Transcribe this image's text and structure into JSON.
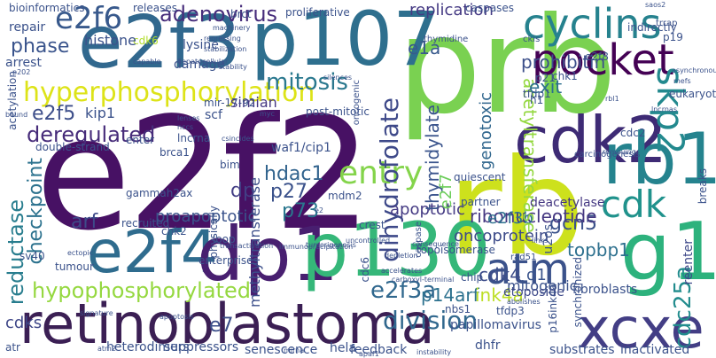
{
  "words": [
    "prb",
    "e2f2",
    "rb",
    "retinoblastoma",
    "p107",
    "e2f3",
    "cdk2",
    "e2f4",
    "dp1",
    "p130",
    "rb1",
    "g1",
    "xcxe",
    "cyclins",
    "pocket",
    "e2f6",
    "hyperphosphorylation",
    "mitosis",
    "skp2",
    "adenovirus",
    "cdk",
    "atm",
    "entry",
    "dihydrofolate",
    "hypophosphorylated",
    "e2f3a",
    "cdc25a",
    "division",
    "p14arf",
    "deregulated",
    "phase",
    "e2f5",
    "checkpoint",
    "reductase",
    "hdac1",
    "p27",
    "p73",
    "dp",
    "arf",
    "ink4a",
    "gcn5",
    "topbp1",
    "ribonucleotide",
    "oncoprotein",
    "e2f3b",
    "cdk4",
    "apoptotic",
    "thymidylate",
    "genotoxic",
    "acetyltransferase",
    "prohibitin",
    "exit",
    "e1a",
    "d1",
    "e7",
    "cdks",
    "proapoptotic",
    "simian",
    "methyltransferase",
    "replication",
    "kip1",
    "deacetylase",
    "fibroblasts",
    "mitogenic",
    "reenter",
    "u2os",
    "etoposide",
    "e2f7",
    "dhfr",
    "substrates",
    "inactivated",
    "heterodimers",
    "suppressors",
    "senescence",
    "feedback",
    "papillomavirus",
    "caspases",
    "bioinformatics",
    "releases",
    "cdk6",
    "proliferative",
    "histone",
    "arrest",
    "repair",
    "lysine",
    "brct",
    "damage",
    "scf",
    "enter",
    "lncrna",
    "brca1",
    "gammah2ax",
    "chk2",
    "bim",
    "sv40",
    "waf1/cip1",
    "physically",
    "loop",
    "mdm2",
    "crest",
    "partner",
    "quiescent",
    "topoisomerase",
    "tfdp3",
    "nbs1",
    "hela",
    "atr",
    "tumour",
    "chip",
    "cdc6",
    "synchronized",
    "p16ink4a",
    "acetylation",
    "post-mitotic",
    "mir-17-92",
    "transition",
    "enterprises",
    "rad51",
    "e2f8",
    "chk1",
    "tfdp1",
    "p21",
    "h1",
    "ckis",
    "thymidine",
    "indirectly",
    "saos2",
    "carcinogenesis",
    "cdc2",
    "breaks",
    "eukaryotes",
    "p19",
    "trrap",
    "caspase",
    "oncogenic",
    "postmitotic",
    "atm2",
    "mirna",
    "apaf1",
    "instability",
    "links",
    "abolishes",
    "double-strand",
    "recruited",
    "cdk3",
    "e2",
    "apoptosis",
    "transactivation",
    "immunoprecipitation",
    "tumorigenesis",
    "depletion",
    "accelerates",
    "ectopic",
    "uncontrolled",
    "consequence",
    "signature",
    "carboxyl-terminal",
    "nccs",
    "csincides",
    "myc",
    "bound",
    "p202",
    "hepatocellular",
    "stabilization",
    "machinery",
    "silences",
    "stability",
    "capable",
    "lenses",
    "rbl1",
    "asynchronously",
    "lncrnas",
    "repressing",
    "removing",
    "mefs",
    "pnpb",
    "rx1"
  ]
}
